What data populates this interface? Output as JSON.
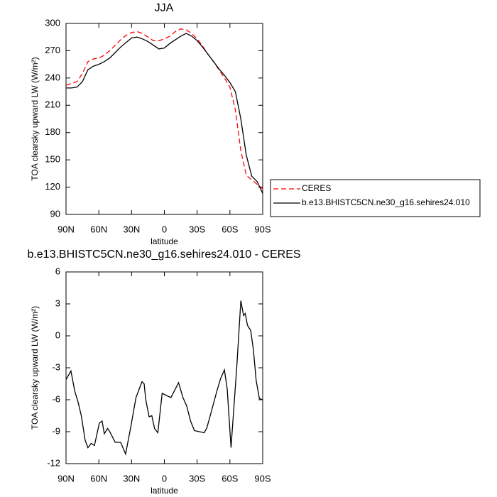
{
  "chart_data": [
    {
      "type": "line",
      "title": "JJA",
      "xlabel": "latitude",
      "ylabel": "TOA clearsky upward LW (W/m²)",
      "x": [
        90,
        85,
        80,
        75,
        70,
        65,
        60,
        55,
        50,
        45,
        40,
        35,
        30,
        25,
        20,
        15,
        10,
        5,
        0,
        -5,
        -10,
        -15,
        -20,
        -25,
        -30,
        -35,
        -40,
        -45,
        -50,
        -55,
        -60,
        -65,
        -70,
        -75,
        -80,
        -85,
        -90
      ],
      "series": [
        {
          "name": "CERES",
          "color": "#ff0000",
          "linestyle": "dashed",
          "values": [
            232,
            234,
            236,
            245,
            258,
            261,
            262,
            265,
            270,
            276,
            282,
            287,
            290,
            291,
            289,
            285,
            281,
            281,
            283,
            286,
            291,
            294,
            293,
            289,
            283,
            275,
            266,
            258,
            249,
            240,
            230,
            205,
            160,
            133,
            128,
            123,
            118
          ]
        },
        {
          "name": "b.e13.BHISTC5CN.ne30_g16.sehires24.010",
          "color": "#000000",
          "linestyle": "solid",
          "values": [
            229,
            229,
            230,
            236,
            249,
            253,
            255,
            258,
            262,
            268,
            274,
            279,
            284,
            285,
            283,
            280,
            276,
            272,
            273,
            278,
            282,
            286,
            289,
            286,
            281,
            274,
            266,
            258,
            250,
            243,
            235,
            225,
            195,
            155,
            132,
            126,
            113
          ]
        }
      ],
      "xlim": [
        90,
        -90
      ],
      "xticks": [
        {
          "value": 90,
          "label": "90N"
        },
        {
          "value": 60,
          "label": "60N"
        },
        {
          "value": 30,
          "label": "30N"
        },
        0,
        {
          "value": -30,
          "label": "30S"
        },
        {
          "value": -60,
          "label": "60S"
        },
        {
          "value": -90,
          "label": "90S"
        }
      ],
      "ylim": [
        90,
        300
      ],
      "yticks": [
        90,
        120,
        150,
        180,
        210,
        240,
        270,
        300
      ],
      "legend": "right"
    },
    {
      "type": "line",
      "title": "b.e13.BHISTC5CN.ne30_g16.sehires24.010 - CERES",
      "xlabel": "latitude",
      "ylabel": "TOA clearsky upward LW (W/m²)",
      "color": "#000000",
      "x": [
        90,
        85.5,
        82,
        79,
        76,
        72.5,
        70,
        67,
        64,
        59.5,
        57,
        55,
        52,
        50,
        45,
        40,
        35.5,
        31,
        26,
        20.5,
        18.5,
        17,
        14,
        11.5,
        9,
        6,
        2,
        -6,
        -13,
        -17,
        -20.5,
        -24,
        -27.5,
        -36.5,
        -39,
        -42.5,
        -48,
        -51.5,
        -55,
        -57.5,
        -61,
        -66.5,
        -70,
        -72.5,
        -74,
        -76,
        -79,
        -81.5,
        -84,
        -87,
        -90
      ],
      "values": [
        -4.1,
        -3.3,
        -5.2,
        -6.2,
        -7.5,
        -9.8,
        -10.5,
        -10.1,
        -10.3,
        -8.2,
        -8.0,
        -9.2,
        -8.7,
        -9.0,
        -10.0,
        -10.0,
        -11.1,
        -8.7,
        -5.8,
        -4.3,
        -4.5,
        -6.0,
        -7.6,
        -7.5,
        -8.7,
        -9.1,
        -5.4,
        -5.8,
        -4.4,
        -5.8,
        -6.6,
        -8.0,
        -8.9,
        -9.1,
        -8.6,
        -7.3,
        -5.2,
        -4.0,
        -3.2,
        -5.0,
        -10.5,
        -2.6,
        3.3,
        1.9,
        2.1,
        1.0,
        0.5,
        -1.3,
        -4.2,
        -5.9,
        -6.0
      ],
      "xlim": [
        90,
        -90
      ],
      "xticks": [
        {
          "value": 90,
          "label": "90N"
        },
        {
          "value": 60,
          "label": "60N"
        },
        {
          "value": 30,
          "label": "30N"
        },
        0,
        {
          "value": -30,
          "label": "30S"
        },
        {
          "value": -60,
          "label": "60S"
        },
        {
          "value": -90,
          "label": "90S"
        }
      ],
      "ylim": [
        -12,
        6
      ],
      "yticks": [
        -12,
        -9,
        -6,
        -3,
        0,
        3,
        6
      ]
    }
  ]
}
